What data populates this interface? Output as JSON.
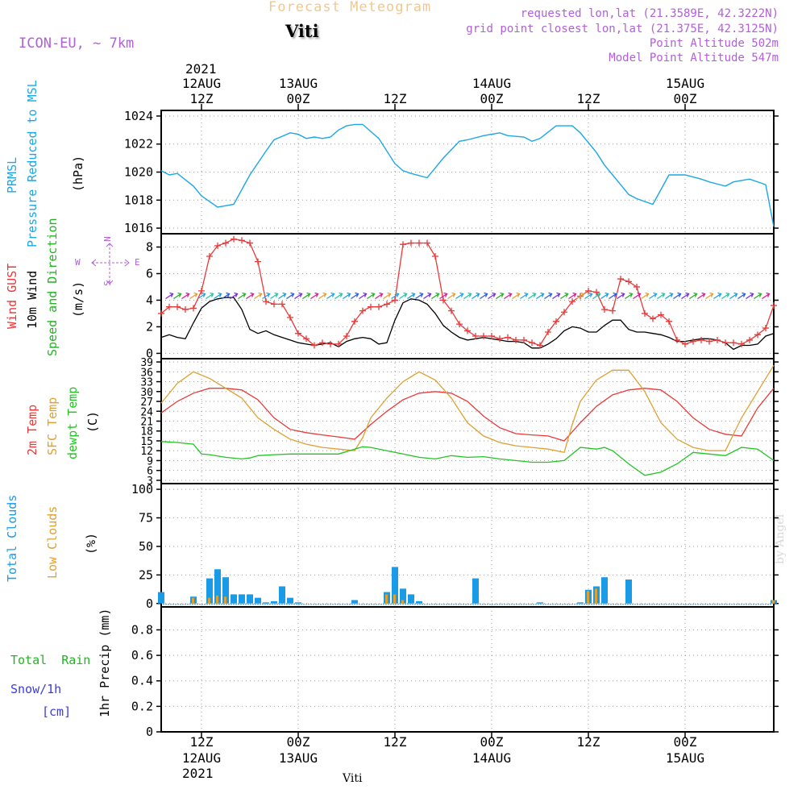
{
  "header": {
    "title": "Forecast Meteogram",
    "location": "Viti",
    "model": "ICON-EU, ~ 7km",
    "requested": "requested lon,lat (21.3589E, 42.3222N)",
    "gridpoint": "grid point closest lon,lat (21.375E, 42.3125N)",
    "point_alt": "Point Altitude 502m",
    "model_alt": "Model Point Altitude 547m",
    "credit": "by Angel",
    "footer_loc": "Viti"
  },
  "time_axis": {
    "year": "2021",
    "top_labels": [
      {
        "x": 0,
        "upper": "12AUG",
        "lower": "12Z"
      },
      {
        "x": 12,
        "upper": "13AUG",
        "lower": "00Z"
      },
      {
        "x": 24,
        "upper": "",
        "lower": "12Z"
      },
      {
        "x": 36,
        "upper": "14AUG",
        "lower": "00Z"
      },
      {
        "x": 48,
        "upper": "",
        "lower": "12Z"
      },
      {
        "x": 60,
        "upper": "15AUG",
        "lower": "00Z"
      }
    ],
    "bottom_labels": [
      {
        "x": 0,
        "upper": "12Z",
        "lower": "12AUG"
      },
      {
        "x": 12,
        "upper": "00Z",
        "lower": "13AUG"
      },
      {
        "x": 24,
        "upper": "12Z",
        "lower": ""
      },
      {
        "x": 36,
        "upper": "00Z",
        "lower": "14AUG"
      },
      {
        "x": 48,
        "upper": "12Z",
        "lower": ""
      },
      {
        "x": 60,
        "upper": "00Z",
        "lower": "15AUG"
      }
    ],
    "x_unit": "hours since 12AUG 12Z",
    "xlim": [
      -5,
      71
    ]
  },
  "panel_labels": {
    "pressure": [
      "PRMSL",
      "Pressure Reduced to MSL",
      "(hPa)"
    ],
    "wind": [
      "Wind GUST",
      "10m Wind",
      "Speed and Direction",
      "(m/s)"
    ],
    "compass": [
      "W",
      "E",
      "N",
      "S"
    ],
    "temp": [
      "2m Temp",
      "SFC Temp",
      "dewpt Temp",
      "(C)"
    ],
    "clouds": [
      "Total Clouds",
      "Low Clouds",
      "(%)"
    ],
    "precip": [
      "Total  Rain",
      "Snow/1h",
      "[cm]",
      "1hr Precip (mm)"
    ]
  },
  "colors": {
    "pressure": "#1aa7e8",
    "gust": "#e83a3a",
    "wind10m": "#000000",
    "windlabel_green": "#22b422",
    "sfc": "#e0a030",
    "dewpt": "#22c422",
    "total_cloud": "#1a9be8",
    "low_cloud": "#e0a030",
    "rain": "#22b422",
    "snow": "#3a3ae8",
    "purple": "#b060d8",
    "title_orange": "#f0c890"
  },
  "chart_data": [
    {
      "type": "line",
      "panel": "pressure",
      "ylim": [
        1015.6,
        1024.4
      ],
      "yticks": [
        1016,
        1018,
        1020,
        1022,
        1024
      ],
      "series": [
        {
          "name": "PRMSL",
          "x": [
            -5,
            -4,
            -3,
            -1,
            0,
            2,
            4,
            6,
            8,
            9,
            11,
            12,
            13,
            14,
            15,
            16,
            17,
            18,
            19,
            20,
            22,
            24,
            25,
            26,
            28,
            29,
            30,
            32,
            33,
            35,
            36,
            37,
            38,
            40,
            41,
            42,
            44,
            46,
            47,
            49,
            50,
            52,
            53,
            54,
            56,
            58,
            60,
            62,
            63,
            65,
            66,
            68,
            70,
            71
          ],
          "y": [
            1020.1,
            1019.8,
            1019.9,
            1019.0,
            1018.3,
            1017.5,
            1017.7,
            1019.8,
            1021.5,
            1022.3,
            1022.8,
            1022.7,
            1022.4,
            1022.5,
            1022.4,
            1022.5,
            1023.0,
            1023.3,
            1023.4,
            1023.4,
            1022.4,
            1020.6,
            1020.1,
            1019.9,
            1019.6,
            1020.3,
            1021.0,
            1022.2,
            1022.3,
            1022.6,
            1022.7,
            1022.8,
            1022.6,
            1022.5,
            1022.2,
            1022.4,
            1023.3,
            1023.3,
            1022.8,
            1021.4,
            1020.5,
            1019.1,
            1018.4,
            1018.1,
            1017.7,
            1019.8,
            1019.8,
            1019.5,
            1019.3,
            1019.0,
            1019.3,
            1019.5,
            1019.1,
            1016.1
          ]
        }
      ]
    },
    {
      "type": "line",
      "panel": "wind",
      "ylim": [
        -0.4,
        9.0
      ],
      "yticks": [
        0,
        2,
        4,
        6,
        8
      ],
      "series": [
        {
          "name": "Wind GUST",
          "x": [
            -5,
            -4,
            -3,
            -2,
            -1,
            0,
            1,
            2,
            3,
            4,
            5,
            6,
            7,
            8,
            9,
            10,
            11,
            12,
            13,
            14,
            15,
            16,
            17,
            18,
            19,
            20,
            21,
            22,
            23,
            24,
            25,
            26,
            27,
            28,
            29,
            30,
            31,
            32,
            33,
            34,
            35,
            36,
            37,
            38,
            39,
            40,
            41,
            42,
            43,
            44,
            45,
            46,
            47,
            48,
            49,
            50,
            51,
            52,
            53,
            54,
            55,
            56,
            57,
            58,
            59,
            60,
            61,
            62,
            63,
            64,
            65,
            66,
            67,
            68,
            69,
            70,
            71
          ],
          "y": [
            3.0,
            3.5,
            3.5,
            3.3,
            3.4,
            4.7,
            7.3,
            8.1,
            8.3,
            8.6,
            8.5,
            8.3,
            6.9,
            3.9,
            3.7,
            3.7,
            2.7,
            1.5,
            1.1,
            0.6,
            0.8,
            0.7,
            0.7,
            1.3,
            2.4,
            3.2,
            3.5,
            3.5,
            3.7,
            4.0,
            8.2,
            8.3,
            8.3,
            8.3,
            7.3,
            4.0,
            3.2,
            2.2,
            1.7,
            1.3,
            1.3,
            1.3,
            1.1,
            1.2,
            1.0,
            1.0,
            0.8,
            0.6,
            1.6,
            2.4,
            3.1,
            3.9,
            4.3,
            4.7,
            4.6,
            3.3,
            3.2,
            5.6,
            5.4,
            5.0,
            3.0,
            2.6,
            2.9,
            2.4,
            1.0,
            0.7,
            0.9,
            1.0,
            0.9,
            1.0,
            0.8,
            0.8,
            0.7,
            1.0,
            1.4,
            1.9,
            3.6
          ]
        },
        {
          "name": "10m Wind",
          "x": [
            -5,
            -4,
            -3,
            -2,
            -1,
            0,
            1,
            2,
            3,
            4,
            5,
            6,
            7,
            8,
            9,
            10,
            11,
            12,
            13,
            14,
            15,
            16,
            17,
            18,
            19,
            20,
            21,
            22,
            23,
            24,
            25,
            26,
            27,
            28,
            29,
            30,
            31,
            32,
            33,
            34,
            35,
            36,
            37,
            38,
            39,
            40,
            41,
            42,
            43,
            44,
            45,
            46,
            47,
            48,
            49,
            50,
            51,
            52,
            53,
            54,
            55,
            56,
            57,
            58,
            59,
            60,
            61,
            62,
            63,
            64,
            65,
            66,
            67,
            68,
            69,
            70,
            71
          ],
          "y": [
            1.2,
            1.4,
            1.2,
            1.1,
            2.3,
            3.4,
            3.9,
            4.1,
            4.2,
            4.2,
            3.3,
            1.8,
            1.5,
            1.7,
            1.4,
            1.2,
            1.0,
            0.8,
            0.7,
            0.6,
            0.7,
            0.8,
            0.5,
            0.9,
            1.1,
            1.2,
            1.1,
            0.7,
            0.8,
            2.5,
            3.8,
            4.1,
            4.0,
            3.7,
            3.0,
            2.1,
            1.6,
            1.2,
            1.0,
            1.1,
            1.2,
            1.1,
            1.0,
            0.9,
            0.9,
            0.8,
            0.4,
            0.4,
            0.7,
            1.1,
            1.7,
            2.0,
            1.9,
            1.6,
            1.6,
            2.1,
            2.5,
            2.5,
            1.8,
            1.6,
            1.6,
            1.5,
            1.4,
            1.2,
            0.9,
            0.9,
            1.0,
            1.1,
            1.1,
            1.0,
            0.8,
            0.3,
            0.6,
            0.6,
            0.7,
            1.3,
            1.5
          ]
        }
      ]
    },
    {
      "type": "line",
      "panel": "temp",
      "ylim": [
        2.0,
        40.0
      ],
      "yticks": [
        3,
        6,
        9,
        12,
        15,
        18,
        21,
        24,
        27,
        30,
        33,
        36,
        39
      ],
      "series": [
        {
          "name": "2m Temp",
          "x": [
            -5,
            -3,
            -1,
            1,
            3,
            5,
            7,
            9,
            11,
            13,
            15,
            17,
            19,
            21,
            23,
            25,
            27,
            29,
            31,
            33,
            35,
            37,
            39,
            41,
            43,
            45,
            47,
            49,
            51,
            53,
            55,
            57,
            59,
            61,
            63,
            65,
            67,
            69,
            71
          ],
          "y": [
            23.5,
            27.0,
            29.5,
            31.0,
            31.0,
            30.5,
            27.5,
            22.0,
            18.5,
            17.5,
            16.8,
            16.2,
            15.5,
            20.0,
            24.0,
            27.5,
            29.5,
            30.0,
            29.5,
            27.0,
            22.5,
            19.0,
            17.2,
            16.8,
            16.5,
            15.0,
            20.5,
            25.5,
            29.0,
            30.5,
            31.0,
            30.5,
            27.0,
            22.0,
            18.5,
            17.0,
            16.5,
            25.0,
            31.0
          ]
        },
        {
          "name": "SFC Temp",
          "x": [
            -5,
            -3,
            -1,
            1,
            3,
            5,
            7,
            9,
            11,
            13,
            15,
            17,
            19,
            20,
            21,
            23,
            25,
            27,
            29,
            31,
            33,
            35,
            37,
            39,
            41,
            43,
            45,
            46,
            47,
            49,
            51,
            53,
            55,
            57,
            59,
            61,
            63,
            65,
            67,
            69,
            71
          ],
          "y": [
            26.5,
            32.5,
            36.0,
            34.0,
            31.0,
            28.0,
            22.0,
            18.5,
            15.5,
            14.0,
            13.0,
            12.5,
            12.0,
            16.0,
            22.0,
            28.0,
            33.0,
            36.0,
            33.5,
            28.0,
            20.5,
            16.5,
            14.5,
            13.5,
            13.0,
            12.5,
            11.5,
            20.0,
            27.0,
            33.5,
            36.5,
            36.5,
            30.0,
            20.5,
            15.5,
            13.0,
            12.0,
            12.0,
            22.0,
            30.0,
            38.0
          ]
        },
        {
          "name": "dewpt Temp",
          "x": [
            -5,
            -3,
            -1,
            0,
            1,
            3,
            5,
            6,
            7,
            9,
            11,
            13,
            15,
            17,
            19,
            20,
            21,
            23,
            25,
            27,
            29,
            31,
            33,
            35,
            37,
            39,
            41,
            43,
            45,
            47,
            49,
            50,
            51,
            53,
            55,
            57,
            59,
            61,
            63,
            65,
            67,
            69,
            71
          ],
          "y": [
            14.8,
            14.5,
            14.0,
            11.0,
            10.8,
            10.0,
            9.5,
            9.8,
            10.5,
            10.8,
            11.0,
            11.0,
            11.0,
            11.0,
            12.5,
            13.2,
            13.0,
            12.0,
            11.0,
            10.0,
            9.5,
            10.5,
            10.0,
            10.2,
            9.5,
            9.0,
            8.5,
            8.5,
            9.0,
            13.0,
            12.5,
            13.0,
            12.0,
            8.0,
            4.5,
            5.5,
            8.0,
            11.5,
            11.0,
            10.5,
            13.0,
            12.5,
            9.0
          ]
        }
      ]
    },
    {
      "type": "bar",
      "panel": "clouds",
      "ylim": [
        -3,
        105
      ],
      "yticks": [
        0,
        25,
        50,
        75,
        100
      ],
      "series": [
        {
          "name": "Total Clouds",
          "x": [
            -5,
            -1,
            1,
            2,
            3,
            4,
            5,
            6,
            7,
            8,
            9,
            10,
            11,
            12,
            19,
            23,
            24,
            25,
            26,
            27,
            34,
            42,
            47,
            48,
            49,
            50,
            53,
            71
          ],
          "y": [
            10,
            6,
            22,
            30,
            23,
            8,
            8,
            8,
            5,
            1,
            2,
            15,
            5,
            1,
            3,
            10,
            32,
            13,
            8,
            2,
            22,
            1,
            1,
            12,
            15,
            23,
            21,
            3
          ]
        },
        {
          "name": "Low Clouds",
          "x": [
            -1,
            1,
            2,
            3,
            23,
            24,
            25,
            48,
            49,
            71
          ],
          "y": [
            5,
            5,
            7,
            6,
            8,
            8,
            3,
            11,
            13,
            3
          ]
        }
      ]
    },
    {
      "type": "bar",
      "panel": "precip",
      "ylim": [
        0,
        0.98
      ],
      "yticks": [
        0,
        0.2,
        0.4,
        0.6,
        0.8
      ],
      "series": [
        {
          "name": "Total  Rain",
          "x": [],
          "y": []
        },
        {
          "name": "Snow/1h",
          "x": [],
          "y": []
        }
      ]
    }
  ]
}
